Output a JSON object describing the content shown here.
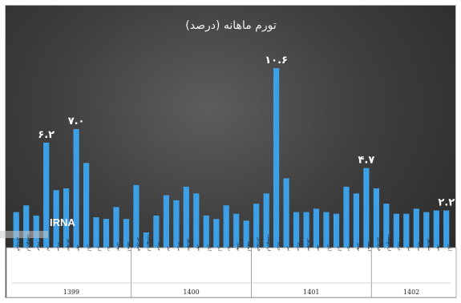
{
  "chart_data": {
    "type": "bar",
    "title": "تورم ماهانه (درصد)",
    "colors": {
      "bar": "#3d9fe6",
      "background": "#3a3a3a",
      "axis_panel": "#ffffff"
    },
    "values": [
      2.1,
      2.5,
      1.9,
      6.2,
      3.4,
      3.5,
      7.0,
      5.0,
      1.8,
      1.7,
      2.4,
      1.7,
      3.7,
      0.9,
      1.9,
      3.1,
      2.8,
      3.6,
      3.2,
      1.9,
      1.7,
      2.5,
      2.0,
      1.6,
      2.6,
      3.2,
      10.6,
      4.1,
      2.1,
      2.1,
      2.3,
      2.1,
      2.0,
      3.6,
      3.2,
      4.7,
      3.5,
      2.6,
      2.0,
      2.0,
      2.3,
      2.1,
      2.2,
      2.2
    ],
    "annotations": [
      {
        "index": 3,
        "text": "۶.۲"
      },
      {
        "index": 6,
        "text": "۷.۰"
      },
      {
        "index": 26,
        "text": "۱۰.۶"
      },
      {
        "index": 35,
        "text": "۴.۷"
      },
      {
        "index": 43,
        "text": "۲.۲"
      }
    ],
    "month_labels": [
      "فروردین",
      "اردیبهشت",
      "خرداد",
      "تیر",
      "مرداد",
      "شهریور",
      "مهر",
      "آبان",
      "آذر",
      "دی",
      "بهمن",
      "اسفند"
    ],
    "years": [
      {
        "label": "1399",
        "start": 0,
        "count": 12
      },
      {
        "label": "1400",
        "start": 12,
        "count": 12
      },
      {
        "label": "1401",
        "start": 24,
        "count": 12
      },
      {
        "label": "1402",
        "start": 36,
        "count": 8
      }
    ],
    "ylim": [
      0,
      11.5
    ]
  },
  "watermark": "IRNA"
}
